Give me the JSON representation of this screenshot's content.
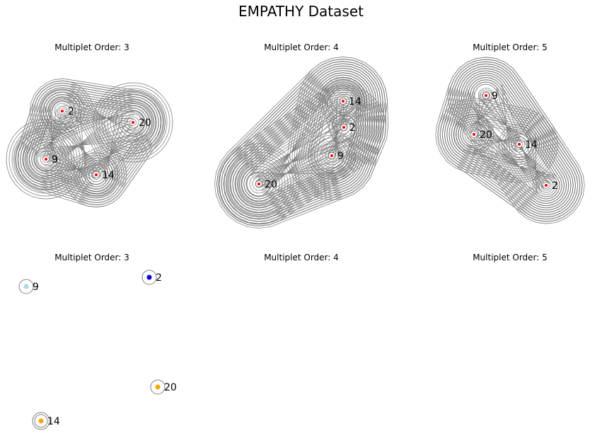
{
  "figure": {
    "title": "EMPATHY Dataset"
  },
  "colors": {
    "edge": "#808080",
    "node_border": "#808080",
    "top_node_fill": "#ff0000"
  },
  "panels": [
    {
      "id": "top-order-3",
      "title": "Multiplet Order: 3",
      "nodes": [
        {
          "label": "2"
        },
        {
          "label": "20"
        },
        {
          "label": "9"
        },
        {
          "label": "14"
        }
      ]
    },
    {
      "id": "top-order-4",
      "title": "Multiplet Order: 4",
      "nodes": [
        {
          "label": "14"
        },
        {
          "label": "2"
        },
        {
          "label": "9"
        },
        {
          "label": "20"
        }
      ]
    },
    {
      "id": "top-order-5",
      "title": "Multiplet Order: 5",
      "nodes": [
        {
          "label": "9"
        },
        {
          "label": "20"
        },
        {
          "label": "14"
        },
        {
          "label": "2"
        }
      ]
    },
    {
      "id": "bottom-order-3",
      "title": "Multiplet Order: 3",
      "nodes": [
        {
          "label": "9",
          "color": "#add8e6"
        },
        {
          "label": "2",
          "color": "#0000ff"
        },
        {
          "label": "20",
          "color": "#ffa500"
        },
        {
          "label": "14",
          "color": "#ffa500"
        }
      ]
    },
    {
      "id": "bottom-order-4",
      "title": "Multiplet Order: 4",
      "nodes": []
    },
    {
      "id": "bottom-order-5",
      "title": "Multiplet Order: 5",
      "nodes": []
    }
  ]
}
